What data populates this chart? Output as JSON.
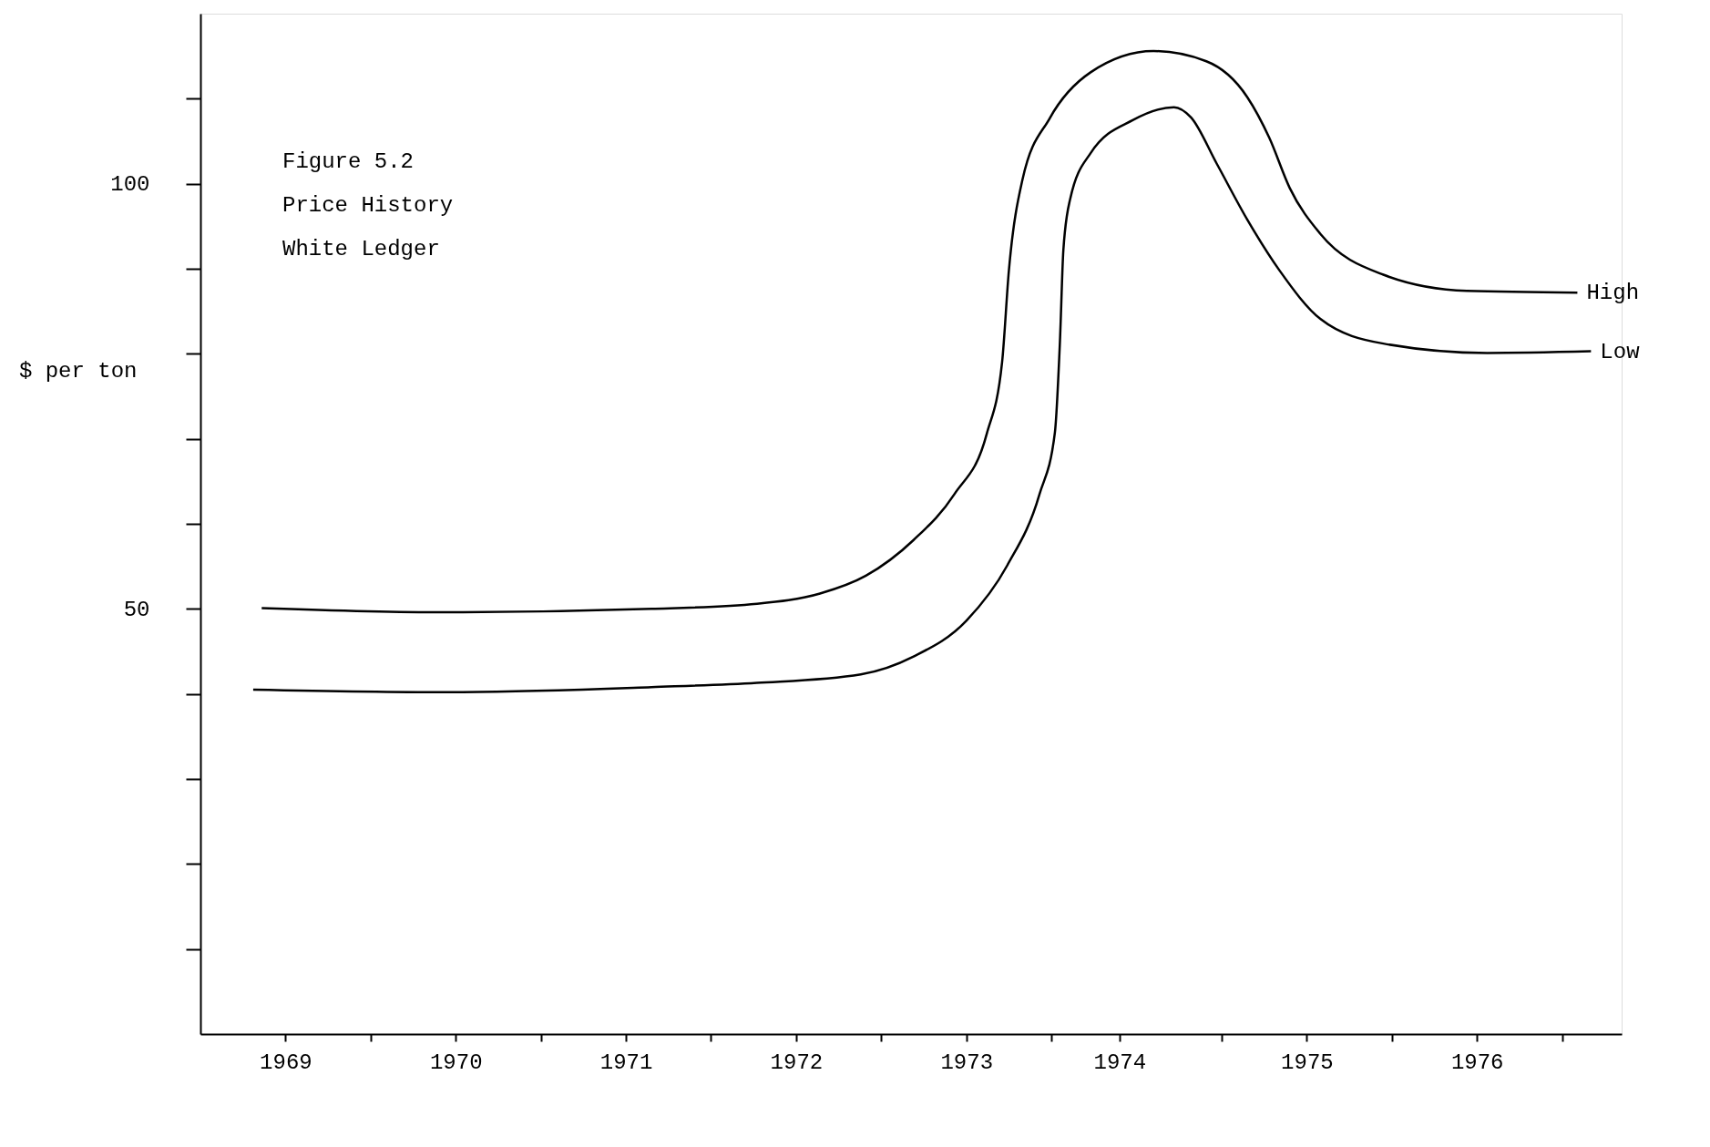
{
  "chart_data": {
    "type": "line",
    "annotations": [
      "Figure 5.2",
      "Price History",
      "White Ledger"
    ],
    "ylabel": "$ per ton",
    "xlim": [
      1969,
      1977.35
    ],
    "ylim": [
      0,
      120
    ],
    "xticks": [
      {
        "value": 1969.5,
        "label": "1969"
      },
      {
        "value": 1970,
        "label": null
      },
      {
        "value": 1970.5,
        "label": "1970"
      },
      {
        "value": 1971,
        "label": null
      },
      {
        "value": 1971.5,
        "label": "1971"
      },
      {
        "value": 1972,
        "label": null
      },
      {
        "value": 1972.5,
        "label": "1972"
      },
      {
        "value": 1973,
        "label": null
      },
      {
        "value": 1973.5,
        "label": "1973"
      },
      {
        "value": 1974,
        "label": null
      },
      {
        "value": 1974.4,
        "label": "1974"
      },
      {
        "value": 1975,
        "label": null
      },
      {
        "value": 1975.5,
        "label": "1975"
      },
      {
        "value": 1976,
        "label": null
      },
      {
        "value": 1976.5,
        "label": "1976"
      },
      {
        "value": 1977,
        "label": null
      }
    ],
    "yticks": [
      {
        "value": 10,
        "label": null
      },
      {
        "value": 20,
        "label": null
      },
      {
        "value": 30,
        "label": null
      },
      {
        "value": 40,
        "label": null
      },
      50,
      {
        "value": 60,
        "label": null
      },
      {
        "value": 70,
        "label": null
      },
      {
        "value": 80,
        "label": null
      },
      {
        "value": 90,
        "label": null
      },
      100,
      {
        "value": 110,
        "label": null
      }
    ],
    "grid": false,
    "line_style": "solid",
    "marker": "none",
    "series": [
      {
        "name": "High",
        "color": "#000000",
        "x": [
          1969.36,
          1970.43,
          1971.65,
          1972.27,
          1972.64,
          1972.91,
          1973.19,
          1973.43,
          1973.62,
          1973.71,
          1973.75,
          1973.83,
          1973.99,
          1974.23,
          1974.6,
          1974.91,
          1975.15,
          1975.28,
          1975.4,
          1975.58,
          1975.95,
          1976.44,
          1977.09
        ],
        "values": [
          50.1,
          49.6,
          50.0,
          50.6,
          51.8,
          53.9,
          58.1,
          63.5,
          70.6,
          79.0,
          89.8,
          100.5,
          107.7,
          113.1,
          115.6,
          114.4,
          110.2,
          105.4,
          99.5,
          94.1,
          89.3,
          87.4,
          87.2
        ]
      },
      {
        "name": "Low",
        "color": "#000000",
        "x": [
          1969.31,
          1970.43,
          1971.65,
          1972.27,
          1972.88,
          1973.19,
          1973.5,
          1973.74,
          1973.93,
          1974.02,
          1974.05,
          1974.07,
          1974.11,
          1974.23,
          1974.48,
          1974.72,
          1974.82,
          1974.97,
          1975.15,
          1975.34,
          1975.58,
          1975.95,
          1976.56,
          1977.17
        ],
        "values": [
          40.5,
          40.2,
          40.8,
          41.3,
          42.3,
          44.4,
          48.6,
          55.1,
          63.5,
          70.7,
          81.5,
          92.2,
          98.2,
          103.6,
          107.5,
          109.0,
          107.8,
          102.4,
          95.8,
          89.8,
          84.1,
          81.2,
          80.1,
          80.3
        ]
      }
    ]
  }
}
